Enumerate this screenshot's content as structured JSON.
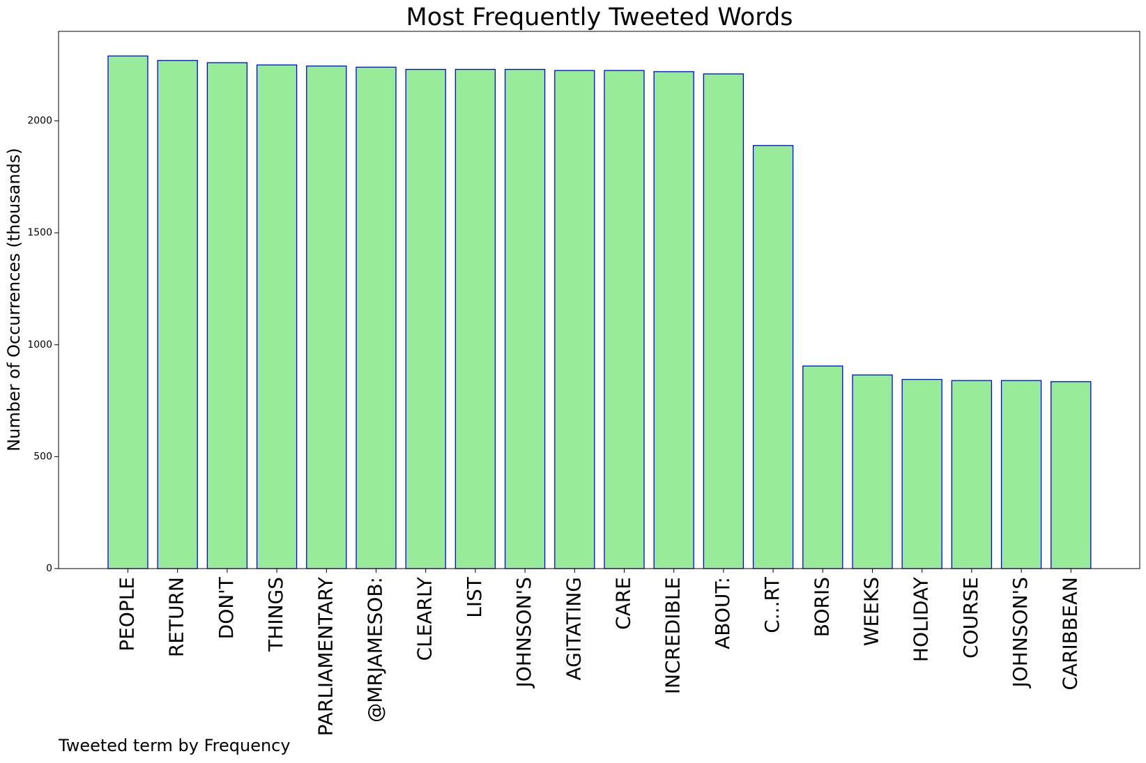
{
  "colors": {
    "bar_fill": "#98eb98",
    "bar_edge": "#0000ff",
    "axes": "#000000",
    "background": "#ffffff"
  },
  "chart_data": {
    "type": "bar",
    "title": "Most Frequently Tweeted Words",
    "xlabel": "Tweeted term by Frequency",
    "ylabel": "Number of Occurrences (thousands)",
    "ylim": [
      0,
      2400
    ],
    "yticks": [
      0,
      500,
      1000,
      1500,
      2000
    ],
    "grid": false,
    "categories": [
      "PEOPLE",
      "RETURN",
      "DON'T",
      "THINGS",
      "PARLIAMENTARY",
      "@MRJAMESOB:",
      "CLEARLY",
      "LIST",
      "JOHNSON'S",
      "AGITATING",
      "CARE",
      "INCREDIBLE",
      "ABOUT:",
      "C...RT",
      "BORIS",
      "WEEKS",
      "HOLIDAY",
      "COURSE",
      "JOHNSON'S",
      "CARIBBEAN"
    ],
    "values": [
      2290,
      2270,
      2260,
      2250,
      2245,
      2240,
      2230,
      2230,
      2230,
      2225,
      2225,
      2220,
      2210,
      1890,
      905,
      865,
      845,
      840,
      840,
      835
    ]
  }
}
